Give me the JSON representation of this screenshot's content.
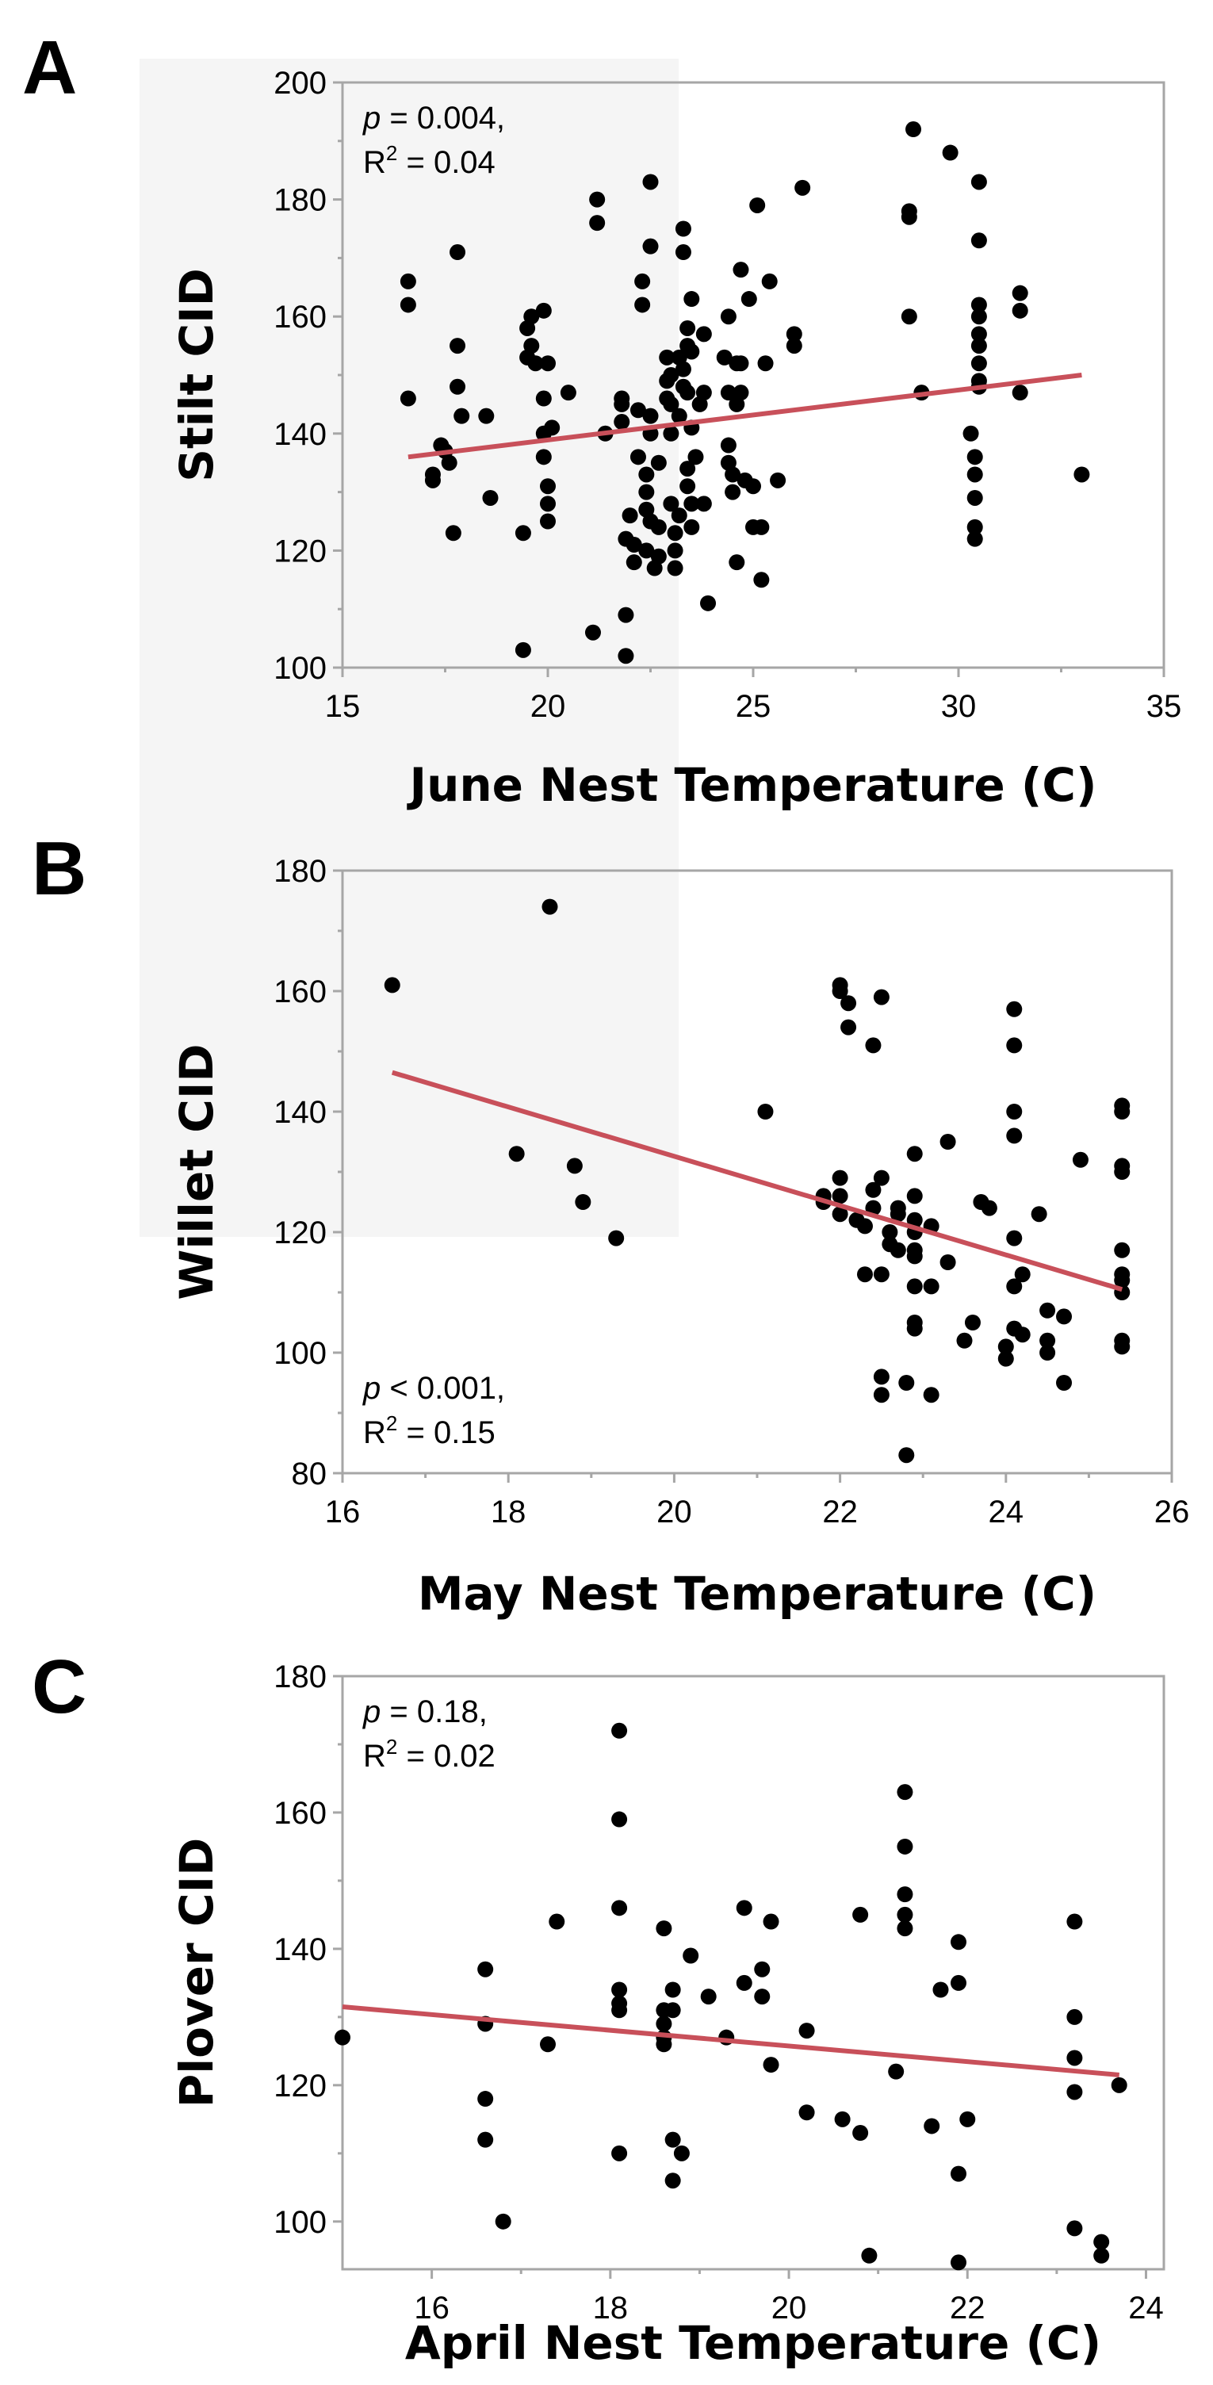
{
  "colors": {
    "points": "#000000",
    "fit_line": "#c8505a",
    "axis": "#a6a6a6",
    "background_patch": "#f5f5f5"
  },
  "chart_data": [
    {
      "panel": "A",
      "type": "scatter",
      "xlabel": "June Nest Temperature (C)",
      "ylabel": "Stilt CID",
      "xlim": [
        15,
        35
      ],
      "ylim": [
        100,
        200
      ],
      "xticks": [
        15,
        20,
        25,
        30,
        35
      ],
      "yticks": [
        100,
        120,
        140,
        160,
        180,
        200
      ],
      "stats": {
        "p_label": "p",
        "p_rest": " = 0.004,",
        "r2_label": "R",
        "r2_sup": "2",
        "r2_rest": " = 0.04"
      },
      "stats_position": "top-left",
      "fit_line": {
        "x": [
          16.6,
          33.0
        ],
        "y": [
          136,
          150
        ]
      },
      "points": [
        [
          16.6,
          166
        ],
        [
          16.6,
          162
        ],
        [
          16.6,
          146
        ],
        [
          17.2,
          133
        ],
        [
          17.2,
          132
        ],
        [
          17.4,
          138
        ],
        [
          17.5,
          137
        ],
        [
          17.6,
          135
        ],
        [
          17.7,
          123
        ],
        [
          17.8,
          171
        ],
        [
          17.8,
          155
        ],
        [
          17.8,
          148
        ],
        [
          17.9,
          143
        ],
        [
          18.5,
          143
        ],
        [
          18.6,
          129
        ],
        [
          19.4,
          123
        ],
        [
          19.4,
          103
        ],
        [
          19.5,
          158
        ],
        [
          19.5,
          153
        ],
        [
          19.6,
          160
        ],
        [
          19.6,
          155
        ],
        [
          19.7,
          152
        ],
        [
          19.9,
          161
        ],
        [
          19.9,
          146
        ],
        [
          19.9,
          140
        ],
        [
          19.9,
          136
        ],
        [
          20.0,
          152
        ],
        [
          20.0,
          131
        ],
        [
          20.0,
          128
        ],
        [
          20.0,
          125
        ],
        [
          20.1,
          141
        ],
        [
          20.5,
          147
        ],
        [
          21.1,
          106
        ],
        [
          21.2,
          180
        ],
        [
          21.2,
          176
        ],
        [
          21.4,
          140
        ],
        [
          21.8,
          146
        ],
        [
          21.8,
          145
        ],
        [
          21.8,
          142
        ],
        [
          21.9,
          122
        ],
        [
          21.9,
          109
        ],
        [
          21.9,
          102
        ],
        [
          22.0,
          126
        ],
        [
          22.1,
          121
        ],
        [
          22.1,
          118
        ],
        [
          22.2,
          144
        ],
        [
          22.2,
          136
        ],
        [
          22.3,
          166
        ],
        [
          22.3,
          162
        ],
        [
          22.4,
          133
        ],
        [
          22.4,
          130
        ],
        [
          22.4,
          127
        ],
        [
          22.4,
          120
        ],
        [
          22.5,
          183
        ],
        [
          22.5,
          172
        ],
        [
          22.5,
          143
        ],
        [
          22.5,
          140
        ],
        [
          22.5,
          125
        ],
        [
          22.6,
          117
        ],
        [
          22.7,
          135
        ],
        [
          22.7,
          124
        ],
        [
          22.7,
          119
        ],
        [
          22.9,
          153
        ],
        [
          22.9,
          149
        ],
        [
          22.9,
          146
        ],
        [
          23.0,
          150
        ],
        [
          23.0,
          145
        ],
        [
          23.0,
          140
        ],
        [
          23.0,
          128
        ],
        [
          23.1,
          123
        ],
        [
          23.1,
          120
        ],
        [
          23.1,
          117
        ],
        [
          23.2,
          153
        ],
        [
          23.2,
          143
        ],
        [
          23.2,
          126
        ],
        [
          23.3,
          175
        ],
        [
          23.3,
          171
        ],
        [
          23.3,
          151
        ],
        [
          23.3,
          148
        ],
        [
          23.4,
          158
        ],
        [
          23.4,
          155
        ],
        [
          23.4,
          147
        ],
        [
          23.4,
          134
        ],
        [
          23.4,
          131
        ],
        [
          23.5,
          163
        ],
        [
          23.5,
          154
        ],
        [
          23.5,
          141
        ],
        [
          23.5,
          128
        ],
        [
          23.5,
          124
        ],
        [
          23.6,
          136
        ],
        [
          23.7,
          145
        ],
        [
          23.8,
          157
        ],
        [
          23.8,
          147
        ],
        [
          23.8,
          128
        ],
        [
          23.9,
          111
        ],
        [
          24.3,
          153
        ],
        [
          24.4,
          160
        ],
        [
          24.4,
          147
        ],
        [
          24.4,
          138
        ],
        [
          24.4,
          135
        ],
        [
          24.5,
          133
        ],
        [
          24.5,
          130
        ],
        [
          24.6,
          152
        ],
        [
          24.6,
          145
        ],
        [
          24.6,
          118
        ],
        [
          24.7,
          168
        ],
        [
          24.7,
          152
        ],
        [
          24.7,
          147
        ],
        [
          24.8,
          132
        ],
        [
          24.9,
          163
        ],
        [
          25.0,
          131
        ],
        [
          25.0,
          124
        ],
        [
          25.1,
          179
        ],
        [
          25.2,
          124
        ],
        [
          25.2,
          115
        ],
        [
          25.3,
          152
        ],
        [
          25.4,
          166
        ],
        [
          25.6,
          132
        ],
        [
          26.0,
          157
        ],
        [
          26.0,
          155
        ],
        [
          26.2,
          182
        ],
        [
          28.8,
          178
        ],
        [
          28.8,
          177
        ],
        [
          28.8,
          160
        ],
        [
          28.9,
          192
        ],
        [
          29.1,
          147
        ],
        [
          29.8,
          188
        ],
        [
          30.3,
          140
        ],
        [
          30.4,
          136
        ],
        [
          30.4,
          133
        ],
        [
          30.4,
          129
        ],
        [
          30.4,
          124
        ],
        [
          30.4,
          122
        ],
        [
          30.5,
          183
        ],
        [
          30.5,
          173
        ],
        [
          30.5,
          162
        ],
        [
          30.5,
          160
        ],
        [
          30.5,
          157
        ],
        [
          30.5,
          155
        ],
        [
          30.5,
          152
        ],
        [
          30.5,
          149
        ],
        [
          30.5,
          148
        ],
        [
          31.5,
          164
        ],
        [
          31.5,
          161
        ],
        [
          31.5,
          147
        ],
        [
          33.0,
          133
        ]
      ]
    },
    {
      "panel": "B",
      "type": "scatter",
      "xlabel": "May Nest Temperature (C)",
      "ylabel": "Willet CID",
      "xlim": [
        16,
        26
      ],
      "ylim": [
        80,
        180
      ],
      "xticks": [
        16,
        18,
        20,
        22,
        24,
        26
      ],
      "yticks": [
        80,
        100,
        120,
        140,
        160,
        180
      ],
      "stats": {
        "p_label": "p",
        "p_rest": " < 0.001,",
        "r2_label": "R",
        "r2_sup": "2",
        "r2_rest": " = 0.15"
      },
      "stats_position": "bottom-left",
      "fit_line": {
        "x": [
          16.6,
          25.4
        ],
        "y": [
          146.5,
          110.5
        ]
      },
      "points": [
        [
          16.6,
          161
        ],
        [
          18.1,
          133
        ],
        [
          18.5,
          174
        ],
        [
          18.8,
          131
        ],
        [
          18.9,
          125
        ],
        [
          19.3,
          119
        ],
        [
          21.1,
          140
        ],
        [
          21.8,
          126
        ],
        [
          21.8,
          125
        ],
        [
          22.0,
          161
        ],
        [
          22.0,
          160
        ],
        [
          22.0,
          129
        ],
        [
          22.0,
          126
        ],
        [
          22.0,
          123
        ],
        [
          22.1,
          158
        ],
        [
          22.1,
          154
        ],
        [
          22.2,
          122
        ],
        [
          22.3,
          113
        ],
        [
          22.3,
          121
        ],
        [
          22.4,
          151
        ],
        [
          22.4,
          127
        ],
        [
          22.4,
          124
        ],
        [
          22.5,
          159
        ],
        [
          22.5,
          129
        ],
        [
          22.5,
          96
        ],
        [
          22.5,
          93
        ],
        [
          22.5,
          113
        ],
        [
          22.6,
          120
        ],
        [
          22.6,
          118
        ],
        [
          22.7,
          124
        ],
        [
          22.7,
          123
        ],
        [
          22.7,
          117
        ],
        [
          22.8,
          95
        ],
        [
          22.8,
          83
        ],
        [
          22.9,
          133
        ],
        [
          22.9,
          126
        ],
        [
          22.9,
          122
        ],
        [
          22.9,
          120
        ],
        [
          22.9,
          117
        ],
        [
          22.9,
          116
        ],
        [
          22.9,
          111
        ],
        [
          22.9,
          105
        ],
        [
          22.9,
          104
        ],
        [
          23.1,
          121
        ],
        [
          23.1,
          111
        ],
        [
          23.1,
          93
        ],
        [
          23.3,
          135
        ],
        [
          23.3,
          115
        ],
        [
          23.5,
          102
        ],
        [
          23.6,
          105
        ],
        [
          23.7,
          125
        ],
        [
          23.8,
          124
        ],
        [
          24.0,
          99
        ],
        [
          24.0,
          101
        ],
        [
          24.1,
          157
        ],
        [
          24.1,
          151
        ],
        [
          24.1,
          140
        ],
        [
          24.1,
          136
        ],
        [
          24.1,
          119
        ],
        [
          24.1,
          111
        ],
        [
          24.1,
          104
        ],
        [
          24.2,
          113
        ],
        [
          24.2,
          103
        ],
        [
          24.4,
          123
        ],
        [
          24.5,
          107
        ],
        [
          24.5,
          102
        ],
        [
          24.5,
          100
        ],
        [
          24.7,
          106
        ],
        [
          24.7,
          95
        ],
        [
          24.9,
          132
        ],
        [
          25.4,
          141
        ],
        [
          25.4,
          140
        ],
        [
          25.4,
          131
        ],
        [
          25.4,
          130
        ],
        [
          25.4,
          117
        ],
        [
          25.4,
          113
        ],
        [
          25.4,
          112
        ],
        [
          25.4,
          110
        ],
        [
          25.4,
          102
        ],
        [
          25.4,
          101
        ]
      ]
    },
    {
      "panel": "C",
      "type": "scatter",
      "xlabel": "April Nest Temperature (C)",
      "ylabel": "Plover CID",
      "xlim": [
        15,
        24.2
      ],
      "ylim": [
        93,
        180
      ],
      "xticks": [
        16,
        18,
        20,
        22,
        24
      ],
      "yticks": [
        100,
        120,
        140,
        160,
        180
      ],
      "stats": {
        "p_label": "p",
        "p_rest": " = 0.18,",
        "r2_label": "R",
        "r2_sup": "2",
        "r2_rest": " = 0.02"
      },
      "stats_position": "top-left",
      "fit_line": {
        "x": [
          15.0,
          23.7
        ],
        "y": [
          131.5,
          121.5
        ]
      },
      "points": [
        [
          15.0,
          127
        ],
        [
          16.6,
          137
        ],
        [
          16.6,
          129
        ],
        [
          16.6,
          118
        ],
        [
          16.6,
          112
        ],
        [
          16.8,
          100
        ],
        [
          17.3,
          126
        ],
        [
          17.4,
          144
        ],
        [
          18.1,
          172
        ],
        [
          18.1,
          159
        ],
        [
          18.1,
          146
        ],
        [
          18.1,
          134
        ],
        [
          18.1,
          132
        ],
        [
          18.1,
          131
        ],
        [
          18.1,
          110
        ],
        [
          18.6,
          143
        ],
        [
          18.6,
          131
        ],
        [
          18.6,
          129
        ],
        [
          18.6,
          127
        ],
        [
          18.6,
          126
        ],
        [
          18.7,
          134
        ],
        [
          18.7,
          131
        ],
        [
          18.7,
          112
        ],
        [
          18.7,
          106
        ],
        [
          18.8,
          110
        ],
        [
          18.9,
          139
        ],
        [
          19.1,
          133
        ],
        [
          19.3,
          127
        ],
        [
          19.5,
          146
        ],
        [
          19.5,
          135
        ],
        [
          19.7,
          137
        ],
        [
          19.7,
          133
        ],
        [
          19.8,
          144
        ],
        [
          19.8,
          123
        ],
        [
          20.2,
          128
        ],
        [
          20.2,
          116
        ],
        [
          20.6,
          115
        ],
        [
          20.8,
          113
        ],
        [
          20.8,
          145
        ],
        [
          20.9,
          95
        ],
        [
          21.2,
          122
        ],
        [
          21.3,
          163
        ],
        [
          21.3,
          155
        ],
        [
          21.3,
          148
        ],
        [
          21.3,
          145
        ],
        [
          21.3,
          143
        ],
        [
          21.6,
          114
        ],
        [
          21.7,
          134
        ],
        [
          21.9,
          141
        ],
        [
          21.9,
          135
        ],
        [
          21.9,
          107
        ],
        [
          21.9,
          94
        ],
        [
          22.0,
          115
        ],
        [
          23.2,
          144
        ],
        [
          23.2,
          130
        ],
        [
          23.2,
          124
        ],
        [
          23.2,
          119
        ],
        [
          23.2,
          99
        ],
        [
          23.5,
          97
        ],
        [
          23.5,
          95
        ],
        [
          23.7,
          120
        ]
      ]
    }
  ]
}
